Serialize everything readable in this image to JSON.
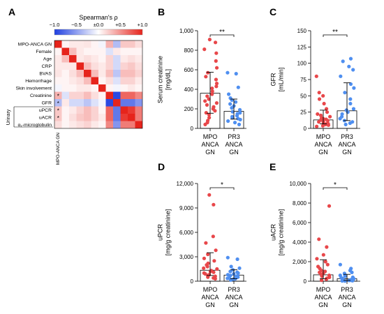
{
  "panel_letters": {
    "A": "A",
    "B": "B",
    "C": "C",
    "D": "D",
    "E": "E"
  },
  "colors": {
    "mpo": "#e8474a",
    "pr3": "#4f8ff0",
    "bar_edge": "#000000"
  },
  "chart_data": [
    {
      "panel": "A",
      "type": "heatmap",
      "title": "Spearman's ρ",
      "colorbar_ticks": [
        "−1.0",
        "−0.5",
        "±0.0",
        "+0.5",
        "+1.0"
      ],
      "colorbar_range": [
        -1,
        1
      ],
      "row_labels": [
        "MPO-ANCA GN",
        "Female",
        "Age",
        "CRP",
        "BVAS",
        "Hemorrhage",
        "Skin involvement",
        "Creatinine",
        "GFR",
        "uPCR",
        "uACR",
        "α₁-microglobulin"
      ],
      "column_label": "MPO-ANCA GN",
      "group_label": "Urinary",
      "significance_marks": [
        {
          "row": "Creatinine",
          "mark": "*"
        },
        {
          "row": "GFR",
          "mark": "*"
        },
        {
          "row": "uPCR",
          "mark": "*"
        },
        {
          "row": "uACR",
          "mark": "*"
        }
      ],
      "values": [
        [
          1.0,
          0.05,
          0.1,
          0.1,
          0.12,
          0.05,
          -0.05,
          0.35,
          -0.35,
          0.25,
          0.25,
          0.15
        ],
        [
          0.05,
          1.0,
          0.3,
          0.1,
          0.05,
          0.05,
          0.05,
          -0.15,
          0.1,
          0.05,
          0.05,
          0.05
        ],
        [
          0.1,
          0.3,
          1.0,
          0.1,
          0.15,
          0.1,
          0.05,
          0.2,
          -0.2,
          0.1,
          0.15,
          0.1
        ],
        [
          0.1,
          0.1,
          0.1,
          1.0,
          0.3,
          0.15,
          0.1,
          0.2,
          -0.2,
          0.2,
          0.25,
          0.15
        ],
        [
          0.12,
          0.05,
          0.15,
          0.3,
          1.0,
          0.3,
          0.1,
          0.3,
          -0.3,
          0.3,
          0.3,
          0.2
        ],
        [
          0.05,
          0.05,
          0.1,
          0.15,
          0.3,
          1.0,
          0.05,
          0.15,
          -0.15,
          0.2,
          0.2,
          0.1
        ],
        [
          -0.05,
          0.05,
          0.05,
          0.1,
          0.1,
          0.05,
          1.0,
          0.05,
          -0.05,
          0.05,
          0.1,
          0.05
        ],
        [
          0.35,
          -0.15,
          0.2,
          0.2,
          0.3,
          0.15,
          0.05,
          1.0,
          -0.95,
          0.7,
          0.7,
          0.55
        ],
        [
          -0.35,
          0.1,
          -0.2,
          -0.2,
          -0.3,
          -0.15,
          -0.05,
          -0.95,
          1.0,
          -0.7,
          -0.7,
          -0.55
        ],
        [
          0.25,
          0.05,
          0.1,
          0.2,
          0.3,
          0.2,
          0.05,
          0.7,
          -0.7,
          1.0,
          0.9,
          0.6
        ],
        [
          0.25,
          0.05,
          0.15,
          0.25,
          0.3,
          0.2,
          0.1,
          0.7,
          -0.7,
          0.9,
          1.0,
          0.6
        ],
        [
          0.15,
          0.05,
          0.1,
          0.15,
          0.2,
          0.1,
          0.05,
          0.55,
          -0.55,
          0.6,
          0.6,
          1.0
        ]
      ]
    },
    {
      "panel": "B",
      "type": "bar",
      "ylabel_lines": [
        "Serum creatinine",
        "[mg/dL]"
      ],
      "ylim": [
        0,
        1000
      ],
      "yticks": [
        0,
        200,
        400,
        600,
        800,
        1000
      ],
      "ytick_labels": [
        "0",
        "200",
        "400",
        "600",
        "800",
        "1,000"
      ],
      "categories": [
        [
          "MPO",
          "ANCA",
          "GN"
        ],
        [
          "PR3",
          "ANCA",
          "GN"
        ]
      ],
      "significance": "**",
      "series": [
        {
          "name": "MPO ANCA GN",
          "median": 360,
          "error": [
            155,
            575
          ],
          "points": [
            910,
            880,
            810,
            770,
            690,
            620,
            570,
            530,
            500,
            460,
            430,
            410,
            380,
            350,
            330,
            300,
            280,
            260,
            240,
            220,
            200,
            180,
            160,
            140,
            110,
            80,
            60,
            40
          ]
        },
        {
          "name": "PR3 ANCA GN",
          "median": 175,
          "error": [
            95,
            300
          ],
          "points": [
            570,
            560,
            420,
            350,
            310,
            290,
            270,
            250,
            230,
            210,
            190,
            170,
            160,
            150,
            130,
            120,
            110,
            100,
            90,
            75,
            60,
            40
          ]
        }
      ]
    },
    {
      "panel": "C",
      "type": "bar",
      "ylabel_lines": [
        "GFR",
        "[mL/min]"
      ],
      "ylim": [
        0,
        150
      ],
      "yticks": [
        0,
        25,
        50,
        75,
        100,
        125,
        150
      ],
      "ytick_labels": [
        "0",
        "25",
        "50",
        "75",
        "100",
        "125",
        "150"
      ],
      "categories": [
        [
          "MPO",
          "ANCA",
          "GN"
        ],
        [
          "PR3",
          "ANCA",
          "GN"
        ]
      ],
      "significance": "**",
      "series": [
        {
          "name": "MPO ANCA GN",
          "median": 13,
          "error": [
            7,
            28
          ],
          "points": [
            80,
            55,
            50,
            45,
            38,
            30,
            25,
            22,
            20,
            18,
            16,
            15,
            14,
            13,
            12,
            11,
            10,
            9,
            8,
            7,
            6,
            5,
            4,
            3
          ]
        },
        {
          "name": "PR3 ANCA GN",
          "median": 27,
          "error": [
            12,
            70
          ],
          "points": [
            107,
            103,
            95,
            90,
            80,
            68,
            62,
            55,
            45,
            38,
            30,
            28,
            25,
            22,
            18,
            15,
            12,
            10,
            8,
            6
          ]
        }
      ]
    },
    {
      "panel": "D",
      "type": "bar",
      "ylabel_lines": [
        "uPCR",
        "[mg/g creatinine]"
      ],
      "ylim": [
        0,
        12000
      ],
      "yticks": [
        0,
        3000,
        6000,
        9000,
        12000
      ],
      "ytick_labels": [
        "0",
        "3,000",
        "6,000",
        "9,000",
        "12,000"
      ],
      "categories": [
        [
          "MPO",
          "ANCA",
          "GN"
        ],
        [
          "PR3",
          "ANCA",
          "GN"
        ]
      ],
      "significance": "*",
      "series": [
        {
          "name": "MPO ANCA GN",
          "median": 1350,
          "error": [
            700,
            3500
          ],
          "points": [
            10600,
            9400,
            5500,
            4700,
            3800,
            3300,
            2800,
            2500,
            2200,
            2000,
            1800,
            1600,
            1500,
            1300,
            1200,
            1100,
            1000,
            900,
            800,
            700,
            600,
            500,
            400,
            300
          ]
        },
        {
          "name": "PR3 ANCA GN",
          "median": 750,
          "error": [
            300,
            1400
          ],
          "points": [
            2900,
            2700,
            1800,
            1600,
            1400,
            1200,
            1100,
            1000,
            900,
            800,
            700,
            650,
            600,
            500,
            400,
            350,
            300,
            250,
            200,
            150
          ]
        }
      ]
    },
    {
      "panel": "E",
      "type": "bar",
      "ylabel_lines": [
        "uACR",
        "[mg/g creatinine]"
      ],
      "ylim": [
        0,
        10000
      ],
      "yticks": [
        0,
        2000,
        4000,
        6000,
        8000,
        10000
      ],
      "ytick_labels": [
        "0",
        "2,000",
        "4,000",
        "6,000",
        "8,000",
        "10,000"
      ],
      "categories": [
        [
          "MPO",
          "ANCA",
          "GN"
        ],
        [
          "PR3",
          "ANCA",
          "GN"
        ]
      ],
      "significance": "*",
      "series": [
        {
          "name": "MPO ANCA GN",
          "median": 650,
          "error": [
            250,
            2200
          ],
          "points": [
            7700,
            4300,
            3500,
            2700,
            2300,
            2000,
            1700,
            1500,
            1300,
            1100,
            1000,
            900,
            800,
            700,
            600,
            500,
            400,
            300,
            200,
            100
          ]
        },
        {
          "name": "PR3 ANCA GN",
          "median": 250,
          "error": [
            80,
            700
          ],
          "points": [
            1700,
            1300,
            1100,
            900,
            800,
            700,
            600,
            500,
            400,
            350,
            300,
            250,
            200,
            150,
            120,
            100,
            80,
            50,
            30,
            20
          ]
        }
      ]
    }
  ]
}
